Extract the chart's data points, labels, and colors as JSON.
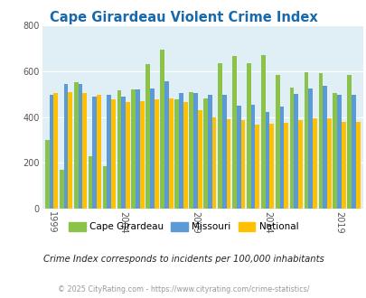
{
  "title": "Cape Girardeau Violent Crime Index",
  "years": [
    1999,
    2000,
    2001,
    2002,
    2003,
    2004,
    2005,
    2006,
    2007,
    2008,
    2009,
    2010,
    2011,
    2012,
    2013,
    2014,
    2015,
    2016,
    2017,
    2018,
    2019,
    2020
  ],
  "cape_girardeau": [
    300,
    170,
    550,
    230,
    185,
    515,
    520,
    630,
    695,
    475,
    510,
    480,
    635,
    665,
    635,
    670,
    585,
    530,
    595,
    590,
    505,
    585
  ],
  "missouri": [
    495,
    545,
    545,
    490,
    495,
    490,
    520,
    525,
    555,
    505,
    505,
    495,
    495,
    450,
    455,
    420,
    445,
    500,
    525,
    535,
    495,
    495
  ],
  "national": [
    505,
    510,
    505,
    495,
    475,
    465,
    470,
    475,
    480,
    465,
    430,
    400,
    390,
    385,
    365,
    370,
    375,
    385,
    395,
    395,
    380,
    380
  ],
  "cape_color": "#8bc34a",
  "missouri_color": "#5b9bd5",
  "national_color": "#ffc000",
  "bg_color": "#e0eff5",
  "title_color": "#1a6aab",
  "subtitle": "Crime Index corresponds to incidents per 100,000 inhabitants",
  "footer": "© 2025 CityRating.com - https://www.cityrating.com/crime-statistics/",
  "ylim": [
    0,
    800
  ],
  "yticks": [
    0,
    200,
    400,
    600,
    800
  ],
  "xtick_labels": [
    "1999",
    "2004",
    "2009",
    "2014",
    "2019"
  ],
  "xtick_positions": [
    0,
    5,
    10,
    15,
    20
  ]
}
